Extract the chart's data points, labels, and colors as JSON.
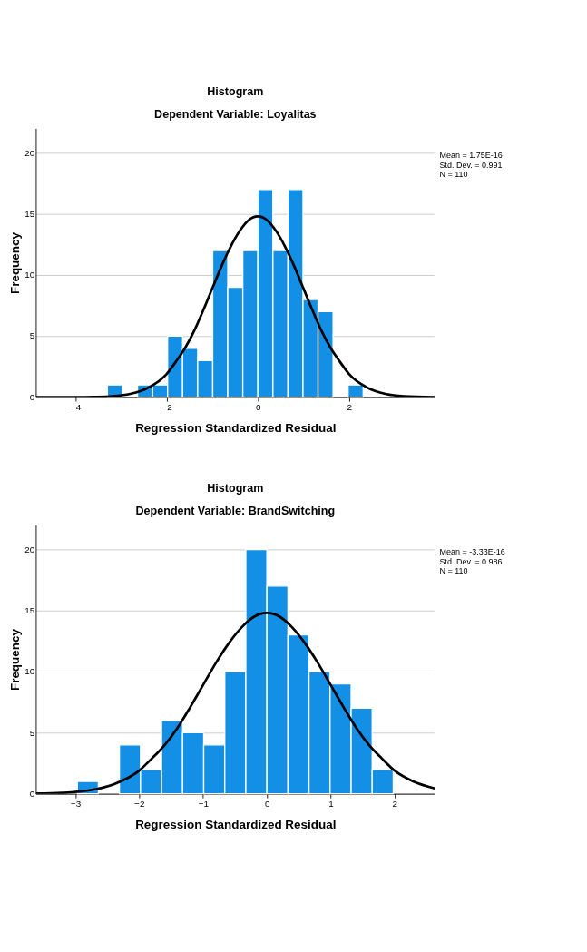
{
  "chart_data": [
    {
      "type": "histogram",
      "title": "Histogram",
      "subtitle": "Dependent Variable: Loyalitas",
      "xlabel": "Regression Standardized Residual",
      "ylabel": "Frequency",
      "bins": [
        -3.3,
        -2.97,
        -2.64,
        -2.31,
        -1.98,
        -1.65,
        -1.32,
        -0.99,
        -0.66,
        -0.33,
        0,
        0.33,
        0.66,
        0.99,
        1.32,
        1.65,
        1.98,
        2.31
      ],
      "values": [
        1,
        0,
        1,
        1,
        5,
        4,
        3,
        12,
        9,
        12,
        17,
        12,
        17,
        8,
        7,
        0,
        1
      ],
      "color": "#138fe6",
      "xlim": [
        -4.87,
        3.88
      ],
      "ylim": [
        0,
        22
      ],
      "xticks": [
        -4,
        -2,
        0,
        2
      ],
      "yticks": [
        0,
        5,
        10,
        15,
        20
      ],
      "grid": "y",
      "annotations": [
        "Mean = 1.75E-16",
        "Std. Dev. = 0.991",
        "N = 110"
      ],
      "series": [
        {
          "type": "line",
          "color": "#000000",
          "x": [
            -4.87,
            -4.0,
            -3.6,
            -3.2,
            -2.8,
            -2.4,
            -2.0,
            -1.8,
            -1.6,
            -1.4,
            -1.2,
            -1.0,
            -0.8,
            -0.6,
            -0.4,
            -0.2,
            0,
            0.2,
            0.4,
            0.6,
            0.8,
            1.0,
            1.2,
            1.4,
            1.6,
            1.8,
            2.0,
            2.4,
            2.8,
            3.2,
            3.88
          ],
          "values": [
            0,
            0,
            0.02,
            0.08,
            0.27,
            0.78,
            1.9,
            2.9,
            4.0,
            5.4,
            7.1,
            8.9,
            10.7,
            12.3,
            13.6,
            14.5,
            14.8,
            14.5,
            13.6,
            12.3,
            10.7,
            8.9,
            7.1,
            5.4,
            4.0,
            2.9,
            1.9,
            0.78,
            0.27,
            0.08,
            0.01
          ]
        }
      ]
    },
    {
      "type": "histogram",
      "title": "Histogram",
      "subtitle": "Dependent Variable: BrandSwitching",
      "xlabel": "Regression Standardized Residual",
      "ylabel": "Frequency",
      "bins": [
        -2.97,
        -2.64,
        -2.31,
        -1.98,
        -1.65,
        -1.32,
        -0.99,
        -0.66,
        -0.33,
        0,
        0.33,
        0.66,
        0.99,
        1.32,
        1.65,
        1.98
      ],
      "values": [
        1,
        0,
        4,
        2,
        6,
        5,
        4,
        10,
        20,
        17,
        13,
        10,
        9,
        7,
        2
      ],
      "color": "#138fe6",
      "xlim": [
        -3.62,
        2.63
      ],
      "ylim": [
        0,
        22
      ],
      "xticks": [
        -3,
        -2,
        -1,
        0,
        1,
        2
      ],
      "yticks": [
        0,
        5,
        10,
        15,
        20
      ],
      "grid": "y",
      "annotations": [
        "Mean = -3.33E-16",
        "Std. Dev. = 0.986",
        "N = 110"
      ],
      "series": [
        {
          "type": "line",
          "color": "#000000",
          "x": [
            -3.62,
            -3.2,
            -2.8,
            -2.4,
            -2.0,
            -1.8,
            -1.6,
            -1.4,
            -1.2,
            -1.0,
            -0.8,
            -0.6,
            -0.4,
            -0.2,
            0,
            0.2,
            0.4,
            0.6,
            0.8,
            1.0,
            1.2,
            1.4,
            1.6,
            1.8,
            2.0,
            2.3,
            2.63
          ],
          "values": [
            0.02,
            0.08,
            0.27,
            0.78,
            1.9,
            2.9,
            4.0,
            5.4,
            7.1,
            8.9,
            10.7,
            12.3,
            13.6,
            14.5,
            14.8,
            14.5,
            13.6,
            12.3,
            10.7,
            8.9,
            7.1,
            5.4,
            4.0,
            2.9,
            1.9,
            1.0,
            0.44
          ]
        }
      ]
    }
  ]
}
